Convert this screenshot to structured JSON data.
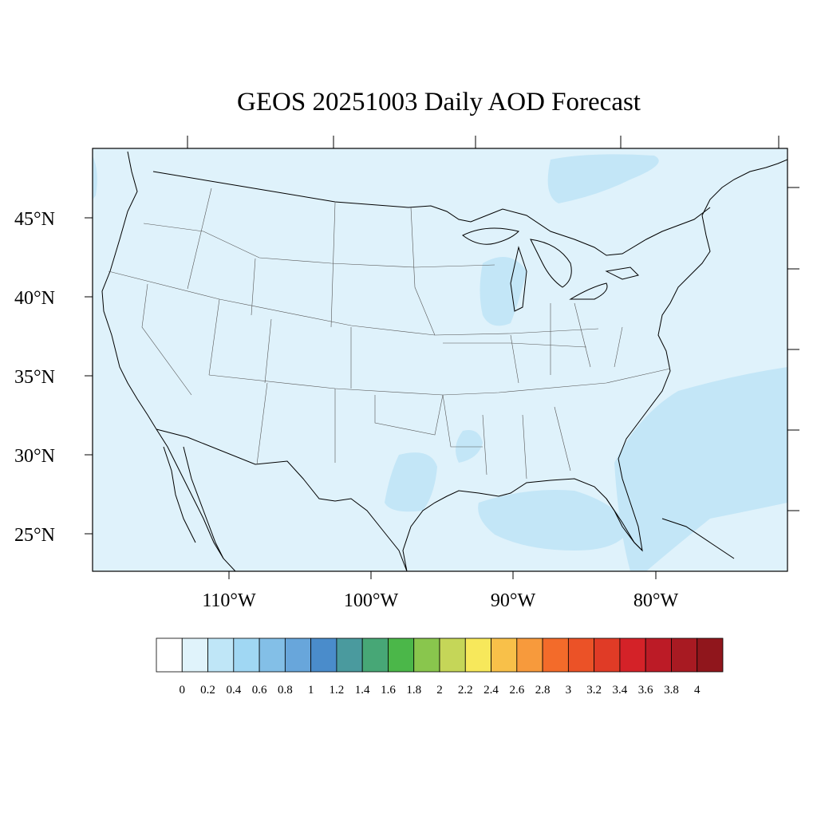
{
  "title": "GEOS 20251003 Daily AOD Forecast",
  "map": {
    "background_color": "#dff2fb",
    "lat_ticks": [
      "45°N",
      "40°N",
      "35°N",
      "30°N",
      "25°N"
    ],
    "lon_ticks": [
      "110°W",
      "100°W",
      "90°W",
      "80°W"
    ],
    "haze_color": "#c3e6f7"
  },
  "colorbar": {
    "labels": [
      "0",
      "0.2",
      "0.4",
      "0.6",
      "0.8",
      "1",
      "1.2",
      "1.4",
      "1.6",
      "1.8",
      "2",
      "2.2",
      "2.4",
      "2.6",
      "2.8",
      "3",
      "3.2",
      "3.4",
      "3.6",
      "3.8",
      "4"
    ],
    "colors": [
      "#ffffff",
      "#e0f3fb",
      "#bfe6f7",
      "#a0d7f3",
      "#83bfe7",
      "#68a6db",
      "#4a8ccb",
      "#4a9a9e",
      "#47a776",
      "#4bb749",
      "#89c64d",
      "#c5d658",
      "#f7e85b",
      "#f8c049",
      "#f79a3c",
      "#f36b2a",
      "#eb5227",
      "#e03b26",
      "#d42228",
      "#bc1b26",
      "#a81a22",
      "#90161c"
    ]
  }
}
